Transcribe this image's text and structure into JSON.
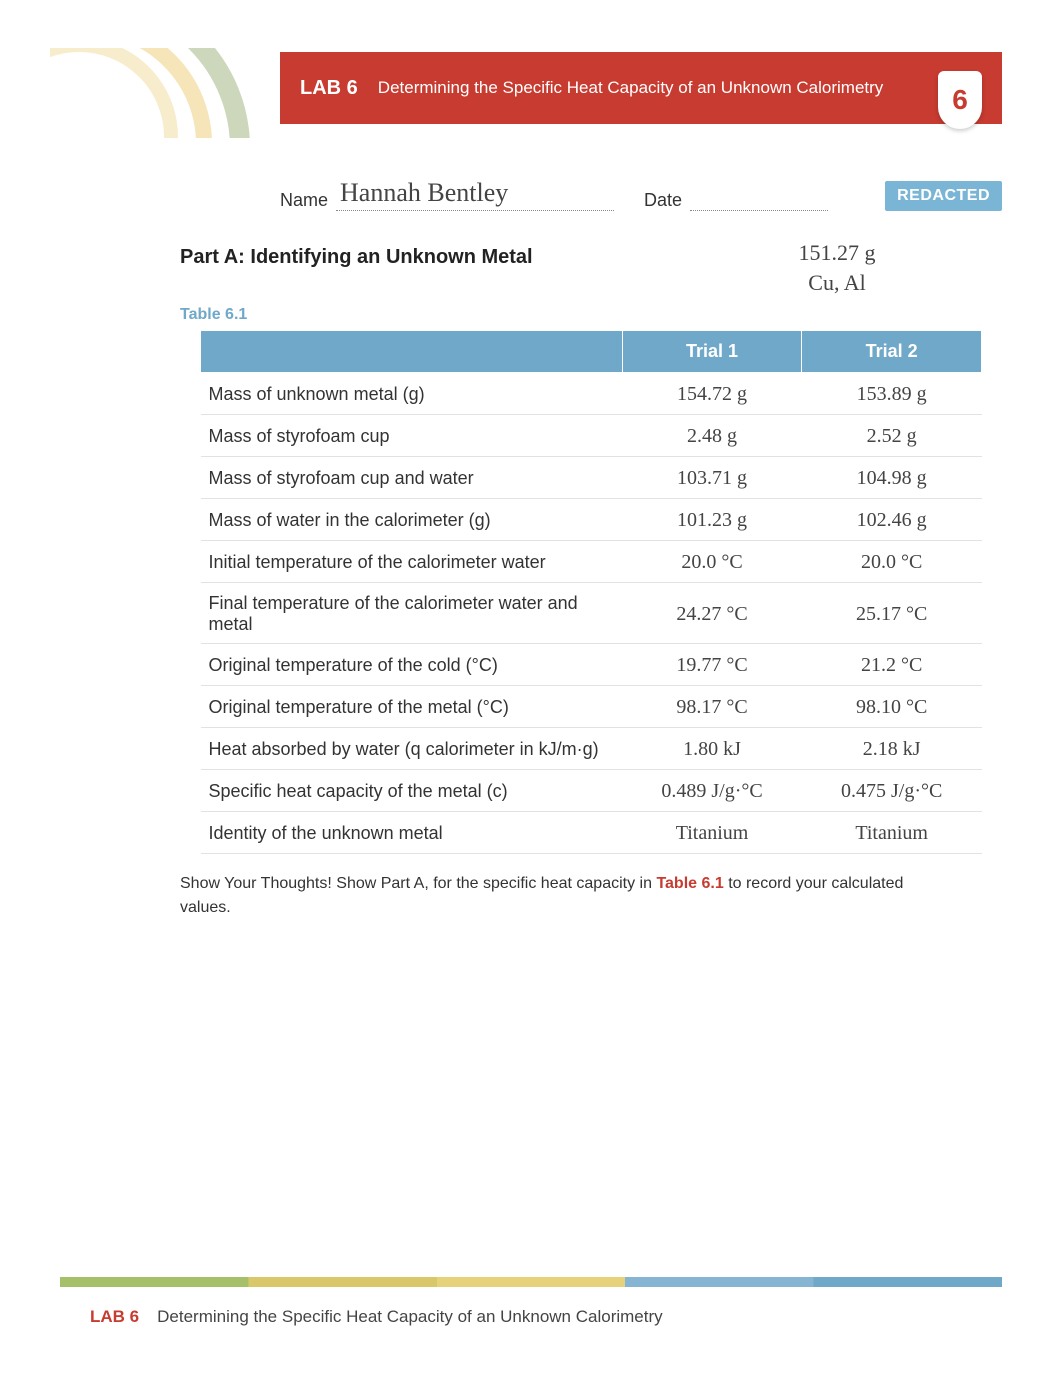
{
  "header": {
    "lab_label": "LAB 6",
    "subtitle": "Determining the Specific Heat Capacity of an Unknown Calorimetry",
    "badge": "6"
  },
  "meta": {
    "name_label": "Name",
    "name_value": "Hannah Bentley",
    "date_label": "Date",
    "date_value": "",
    "redacted": "REDACTED"
  },
  "side_values": {
    "top": "151.27 g",
    "bottom": "Cu, Al"
  },
  "partA": {
    "title": "Part A: Identifying an Unknown Metal",
    "table_label": "Table 6.1"
  },
  "table": {
    "columns": [
      "",
      "Trial 1",
      "Trial 2"
    ],
    "rows": [
      {
        "desc": "Mass of unknown metal (g)",
        "t1": "154.72 g",
        "t2": "153.89 g"
      },
      {
        "desc": "Mass of styrofoam cup",
        "t1": "2.48 g",
        "t2": "2.52 g"
      },
      {
        "desc": "Mass of styrofoam cup and water",
        "t1": "103.71 g",
        "t2": "104.98 g"
      },
      {
        "desc": "Mass of water in the calorimeter (g)",
        "t1": "101.23 g",
        "t2": "102.46 g"
      },
      {
        "desc": "Initial temperature of the calorimeter water",
        "t1": "20.0 °C",
        "t2": "20.0 °C"
      },
      {
        "desc": "Final temperature of the calorimeter water and metal",
        "t1": "24.27 °C",
        "t2": "25.17 °C"
      },
      {
        "desc": "Original temperature of the cold (°C)",
        "t1": "19.77 °C",
        "t2": "21.2 °C"
      },
      {
        "desc": "Original temperature of the metal (°C)",
        "t1": "98.17 °C",
        "t2": "98.10 °C"
      },
      {
        "desc": "Heat absorbed by water (q calorimeter in kJ/m·g)",
        "t1": "1.80 kJ",
        "t2": "2.18 kJ"
      },
      {
        "desc": "Specific heat capacity of the metal (c)",
        "t1": "0.489 J/g·°C",
        "t2": "0.475 J/g·°C"
      },
      {
        "desc": "Identity of the unknown metal",
        "t1": "Titanium",
        "t2": "Titanium"
      }
    ]
  },
  "footnote": {
    "prefix": "Show Your Thoughts! Show Part A, for the specific heat capacity in ",
    "highlight": "Table 6.1",
    "suffix": " to record your calculated values."
  },
  "footer": {
    "lab": "LAB 6",
    "text": "Determining the Specific Heat Capacity of an Unknown Calorimetry"
  },
  "colors": {
    "brand_red": "#c73b30",
    "brand_blue": "#6fa8c8",
    "accent_blue_light": "#7bb5d6",
    "text": "#333333"
  }
}
